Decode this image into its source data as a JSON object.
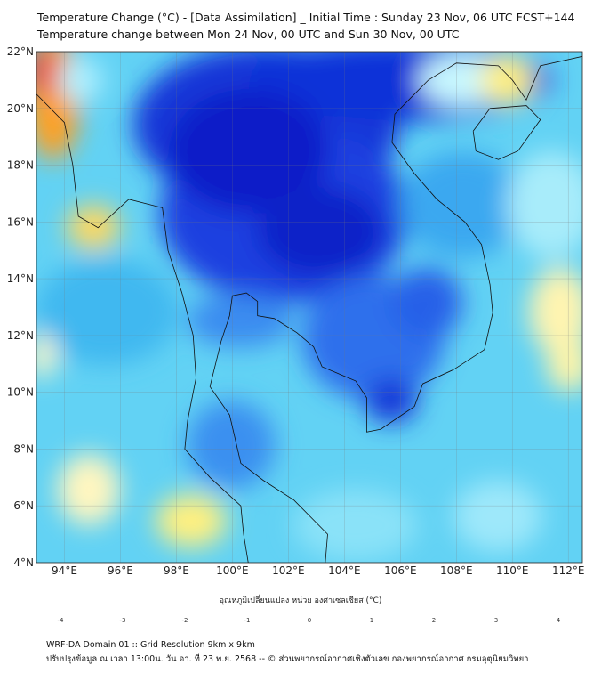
{
  "header": {
    "title_line1": "Temperature Change (°C) - [Data Assimilation] _ Initial Time : Sunday 23 Nov, 06 UTC FCST+144",
    "title_line2": "Temperature change between Mon 24 Nov, 00 UTC and Sun 30 Nov, 00 UTC"
  },
  "map": {
    "lon_range": [
      93,
      112.5
    ],
    "lat_range": [
      4,
      22
    ],
    "lon_ticks": [
      "94°E",
      "96°E",
      "98°E",
      "100°E",
      "102°E",
      "104°E",
      "106°E",
      "108°E",
      "110°E",
      "112°E"
    ],
    "lon_values": [
      94,
      96,
      98,
      100,
      102,
      104,
      106,
      108,
      110,
      112
    ],
    "lat_ticks": [
      "4°N",
      "6°N",
      "8°N",
      "10°N",
      "12°N",
      "14°N",
      "16°N",
      "18°N",
      "20°N",
      "22°N"
    ],
    "lat_values": [
      4,
      6,
      8,
      10,
      12,
      14,
      16,
      18,
      20,
      22
    ]
  },
  "colorbar": {
    "label": "อุณหภูมิเปลี่ยนแปลง หน่วย องศาเซลเซียส (°C)",
    "ticks": [
      "-4",
      "-3",
      "-2",
      "-1",
      "0",
      "1",
      "2",
      "3",
      "4"
    ],
    "range": [
      -4,
      4
    ],
    "colors": [
      "#00007a",
      "#0000d8",
      "#1e64f0",
      "#2ec8f8",
      "#c8f8ff",
      "#ffffff",
      "#fff8b0",
      "#ffe020",
      "#ffa000",
      "#ff2000",
      "#b00000",
      "#700000"
    ]
  },
  "footer": {
    "line1": "WRF-DA Domain 01 :: Grid Resolution 9km x 9km",
    "line2": "ปรับปรุงข้อมูล ณ เวลา 13:00น. วัน อา. ที่ 23 พ.ย. 2568 -- © ส่วนพยากรณ์อากาศเชิงตัวเลข กองพยากรณ์อากาศ กรมอุตุนิยมวิทยา"
  }
}
